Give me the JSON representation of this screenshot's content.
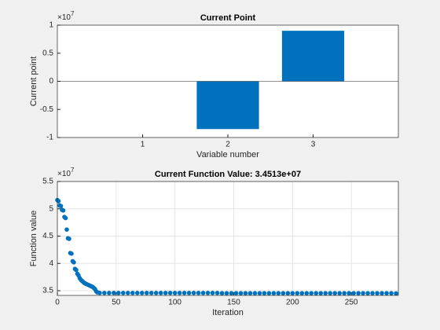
{
  "chart_data": [
    {
      "type": "bar",
      "title": "Current Point",
      "xlabel": "Variable number",
      "ylabel": "Current point",
      "y_multiplier_base": "×10",
      "y_multiplier_exp": "7",
      "x": [
        1,
        2,
        3
      ],
      "values": [
        0,
        -8500000,
        9000000
      ],
      "color": "#0072bd",
      "xlim": [
        0,
        4
      ],
      "xticks": [
        1,
        2,
        3
      ],
      "ylim": [
        -10000000,
        10000000
      ],
      "yticks": [
        {
          "value": -10000000,
          "label": "-1"
        },
        {
          "value": -5000000,
          "label": "-0.5"
        },
        {
          "value": 0,
          "label": "0"
        },
        {
          "value": 5000000,
          "label": "0.5"
        },
        {
          "value": 10000000,
          "label": "1"
        }
      ],
      "grid": false
    },
    {
      "type": "scatter",
      "title": "Current Function Value: 3.4513e+07",
      "xlabel": "Iteration",
      "ylabel": "Function value",
      "y_multiplier_base": "×10",
      "y_multiplier_exp": "7",
      "color": "#0072bd",
      "x": [
        0,
        1,
        2,
        3,
        4,
        5,
        6,
        7,
        8,
        9,
        10,
        11,
        12,
        13,
        14,
        15,
        16,
        17,
        18,
        19,
        20,
        21,
        22,
        23,
        24,
        25,
        26,
        27,
        28,
        29,
        30,
        31,
        32,
        33,
        34,
        36,
        40,
        44,
        48,
        52,
        56,
        60,
        64,
        68,
        72,
        76,
        80,
        84,
        88,
        92,
        96,
        100,
        104,
        108,
        112,
        116,
        120,
        124,
        128,
        132,
        136,
        140,
        144,
        148,
        152,
        156,
        160,
        164,
        168,
        172,
        176,
        180,
        184,
        188,
        192,
        196,
        200,
        204,
        208,
        212,
        216,
        220,
        224,
        228,
        232,
        236,
        240,
        244,
        248,
        252,
        256,
        260,
        264,
        268,
        272,
        276,
        280,
        284,
        288
      ],
      "values": [
        51600000,
        51400000,
        50600000,
        50500000,
        49800000,
        49700000,
        48500000,
        48300000,
        46200000,
        44600000,
        44500000,
        41900000,
        41800000,
        40400000,
        40200000,
        39000000,
        38800000,
        38100000,
        37800000,
        37300000,
        37000000,
        36800000,
        36600000,
        36400000,
        36300000,
        36200000,
        36100000,
        36000000,
        35900000,
        35800000,
        35700000,
        35500000,
        35300000,
        34900000,
        34700000,
        34600000,
        34600000,
        34600000,
        34600000,
        34600000,
        34600000,
        34600000,
        34600000,
        34600000,
        34600000,
        34600000,
        34600000,
        34600000,
        34600000,
        34600000,
        34600000,
        34600000,
        34600000,
        34600000,
        34600000,
        34600000,
        34600000,
        34600000,
        34600000,
        34600000,
        34600000,
        34550000,
        34550000,
        34550000,
        34550000,
        34550000,
        34550000,
        34550000,
        34550000,
        34550000,
        34550000,
        34550000,
        34550000,
        34550000,
        34550000,
        34550000,
        34550000,
        34550000,
        34550000,
        34550000,
        34550000,
        34550000,
        34550000,
        34550000,
        34550000,
        34550000,
        34550000,
        34550000,
        34550000,
        34550000,
        34550000,
        34550000,
        34550000,
        34550000,
        34550000,
        34550000,
        34550000,
        34550000,
        34513000
      ],
      "xlim": [
        0,
        290
      ],
      "xticks": [
        0,
        50,
        100,
        150,
        200,
        250
      ],
      "ylim": [
        34140000,
        55000000
      ],
      "yticks": [
        {
          "value": 35000000,
          "label": "3.5"
        },
        {
          "value": 40000000,
          "label": "4"
        },
        {
          "value": 45000000,
          "label": "4.5"
        },
        {
          "value": 50000000,
          "label": "5"
        },
        {
          "value": 55000000,
          "label": "5.5"
        }
      ],
      "grid": true
    }
  ]
}
